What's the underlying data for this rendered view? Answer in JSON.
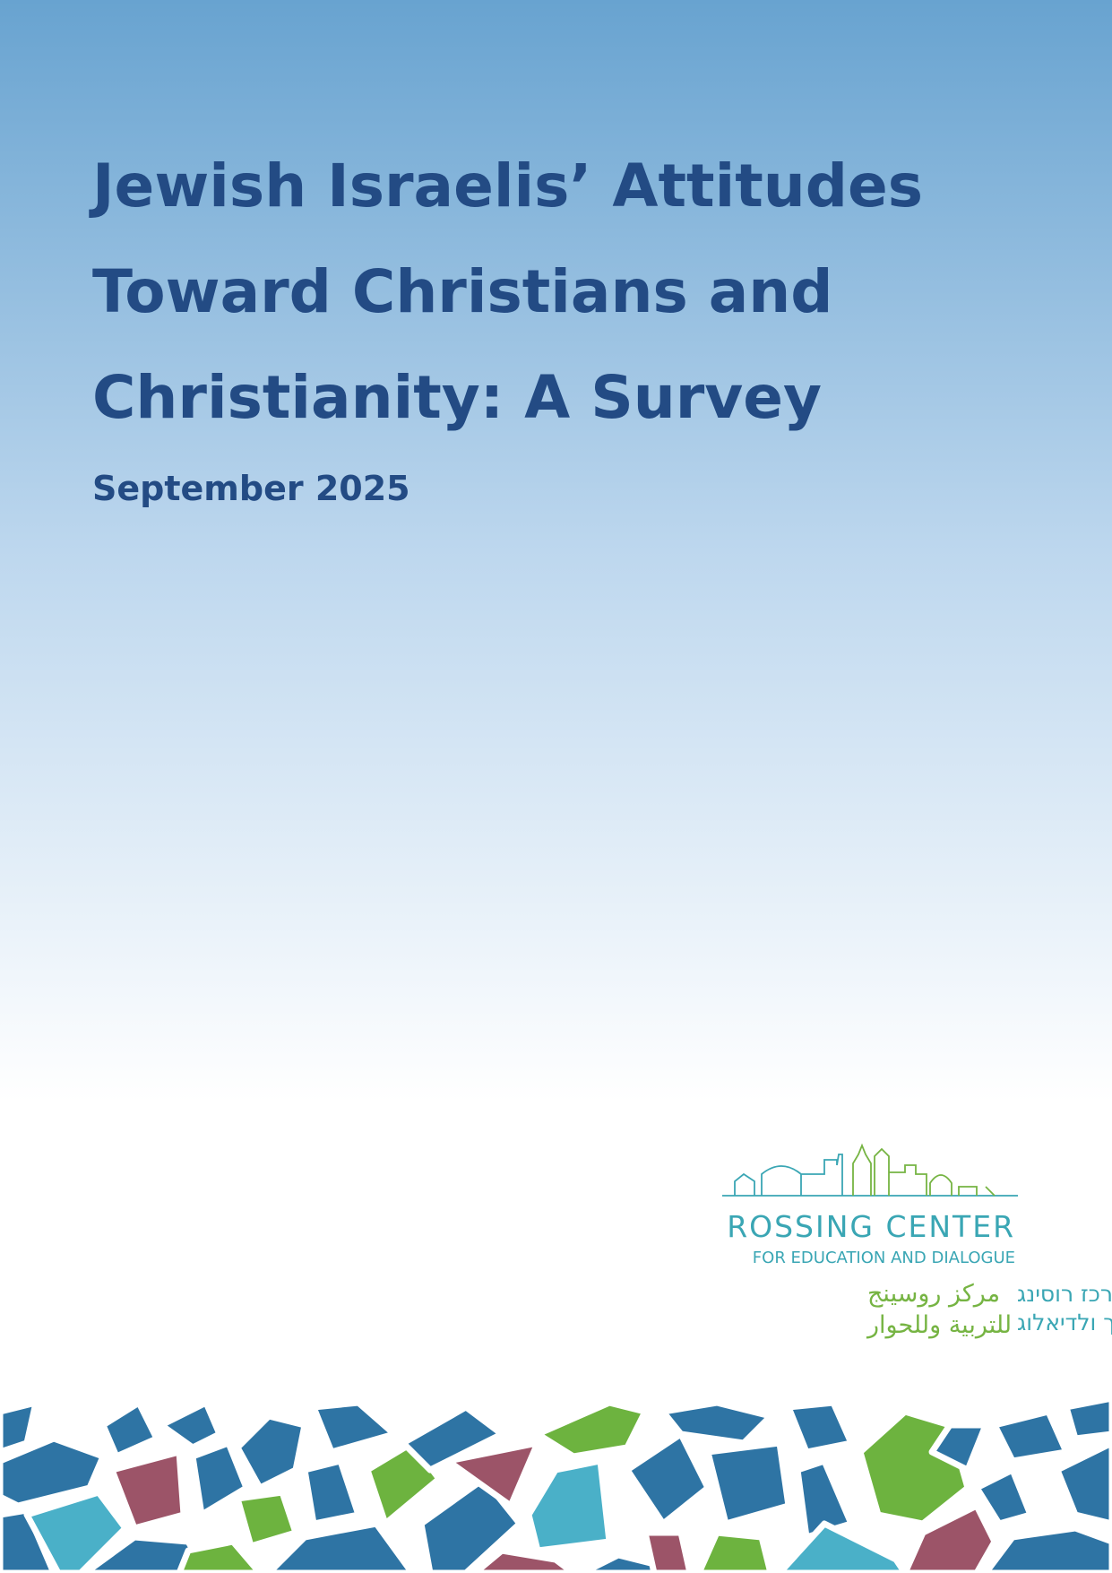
{
  "header": {
    "title": [
      "Jewish Israelis’ Attitudes",
      "Toward Christians and",
      "Christianity: A Survey"
    ],
    "date": "September 2025"
  },
  "logo": {
    "name": "ROSSING CENTER",
    "tagline": "FOR EDUCATION AND DIALOGUE",
    "arabic": [
      "مركز روسينج",
      "للتربية وللحوار"
    ],
    "hebrew": [
      "מרכז רוסינג",
      "לחינוך ולדיאלוג"
    ]
  }
}
